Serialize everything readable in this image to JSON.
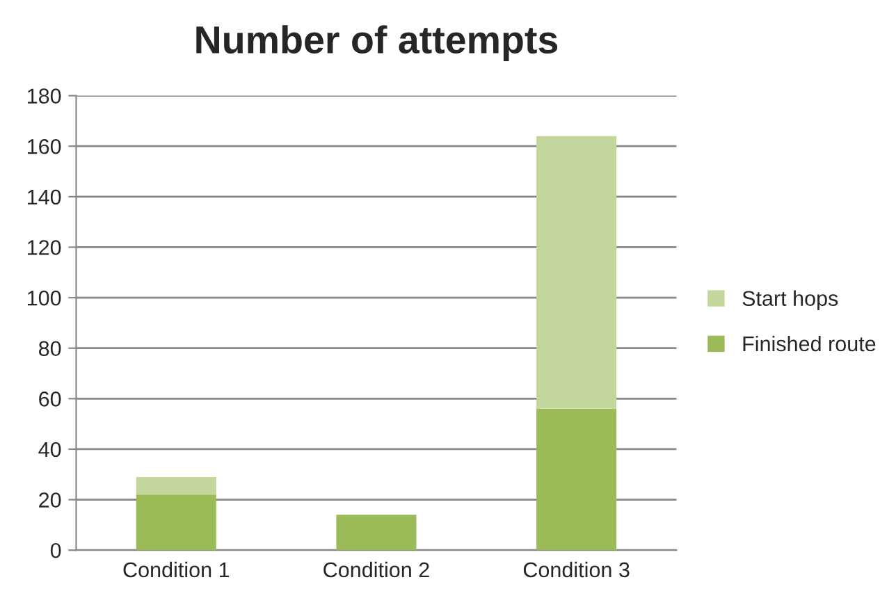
{
  "chart_data": {
    "type": "bar",
    "title": "Number of attempts",
    "categories": [
      "Condition 1",
      "Condition 2",
      "Condition 3"
    ],
    "stacked": true,
    "series": [
      {
        "name": "Finished route",
        "color": "#9bbb59",
        "values": [
          22,
          14,
          56
        ]
      },
      {
        "name": "Start hops",
        "color": "#c3d69b",
        "values": [
          7,
          null,
          108
        ]
      }
    ],
    "ylim": [
      0,
      180
    ],
    "yticks": [
      0,
      20,
      40,
      60,
      80,
      100,
      120,
      140,
      160,
      180
    ],
    "grid": "y",
    "legend": "right"
  }
}
